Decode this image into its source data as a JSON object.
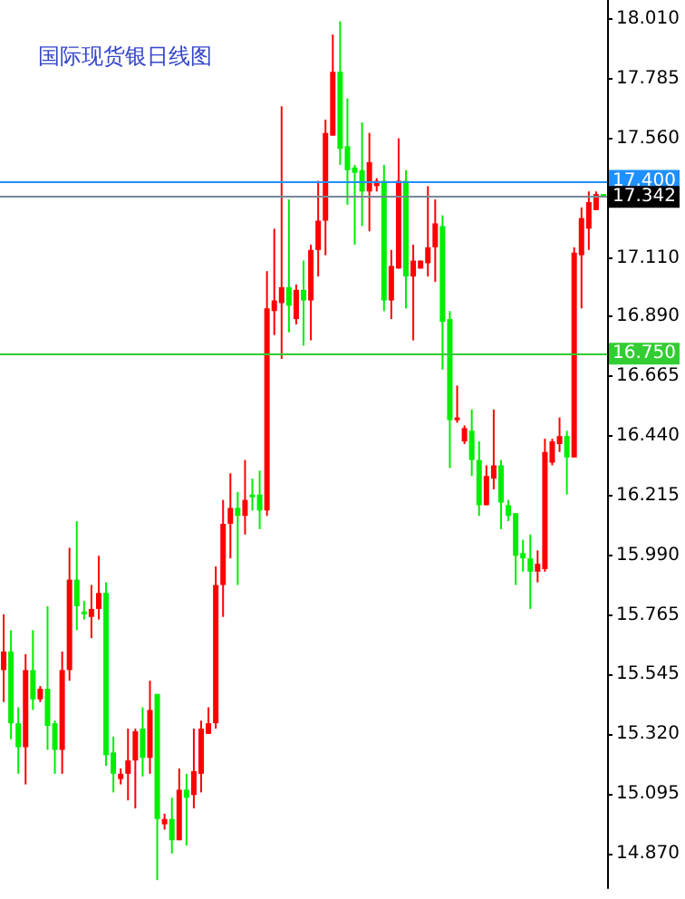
{
  "chart_data": {
    "type": "candlestick",
    "title": "国际现货银日线图",
    "categories": [
      null,
      null,
      null,
      null,
      null,
      null,
      null,
      null,
      null,
      null,
      null,
      null,
      null,
      null,
      null,
      null,
      null,
      null,
      null,
      null,
      null,
      null,
      null,
      null,
      null,
      null,
      null,
      null,
      null,
      null,
      null,
      null,
      null,
      null,
      null,
      null,
      null,
      null,
      null,
      null,
      null,
      null,
      null,
      null,
      null,
      null,
      null,
      null,
      null,
      null,
      null,
      null,
      null,
      null,
      null,
      null,
      null,
      null,
      null,
      null,
      null,
      null,
      null,
      null,
      null,
      null,
      null,
      null,
      null,
      null,
      null,
      null,
      null,
      null,
      null,
      null,
      null,
      null,
      null,
      null,
      null,
      null,
      null
    ],
    "ohlc": [
      [
        15.56,
        15.77,
        15.44,
        15.63
      ],
      [
        15.63,
        15.71,
        15.3,
        15.36
      ],
      [
        15.36,
        15.42,
        15.17,
        15.27
      ],
      [
        15.27,
        15.62,
        15.13,
        15.56
      ],
      [
        15.56,
        15.71,
        15.41,
        15.45
      ],
      [
        15.45,
        15.5,
        15.44,
        15.49
      ],
      [
        15.49,
        15.8,
        15.26,
        15.35
      ],
      [
        15.36,
        15.37,
        15.17,
        15.26
      ],
      [
        15.26,
        15.63,
        15.17,
        15.56
      ],
      [
        15.56,
        16.02,
        15.52,
        15.9
      ],
      [
        15.9,
        16.12,
        15.71,
        15.8
      ],
      [
        15.78,
        15.82,
        15.75,
        15.77
      ],
      [
        15.76,
        15.88,
        15.68,
        15.79
      ],
      [
        15.79,
        15.99,
        15.75,
        15.85
      ],
      [
        15.85,
        15.89,
        15.2,
        15.24
      ],
      [
        15.25,
        15.31,
        15.1,
        15.17
      ],
      [
        15.15,
        15.19,
        15.13,
        15.17
      ],
      [
        15.17,
        15.34,
        15.07,
        15.22
      ],
      [
        15.22,
        15.34,
        15.04,
        15.33
      ],
      [
        15.34,
        15.42,
        15.16,
        15.23
      ],
      [
        15.23,
        15.52,
        15.17,
        15.41
      ],
      [
        15.47,
        15.47,
        14.77,
        15.0
      ],
      [
        14.98,
        15.02,
        14.96,
        15.0
      ],
      [
        15.0,
        15.08,
        14.87,
        14.92
      ],
      [
        14.92,
        15.19,
        14.92,
        15.11
      ],
      [
        15.11,
        15.17,
        14.9,
        15.08
      ],
      [
        15.09,
        15.34,
        15.04,
        15.18
      ],
      [
        15.17,
        15.37,
        15.1,
        15.34
      ],
      [
        15.32,
        15.42,
        15.32,
        15.36
      ],
      [
        15.36,
        15.95,
        15.34,
        15.88
      ],
      [
        15.88,
        16.2,
        15.76,
        16.11
      ],
      [
        16.11,
        16.3,
        15.98,
        16.17
      ],
      [
        16.17,
        16.23,
        15.88,
        16.14
      ],
      [
        16.14,
        16.35,
        16.07,
        16.2
      ],
      [
        16.22,
        16.28,
        16.16,
        16.21
      ],
      [
        16.22,
        16.31,
        16.09,
        16.16
      ],
      [
        16.16,
        17.06,
        16.14,
        16.92
      ],
      [
        16.91,
        17.22,
        16.82,
        16.95
      ],
      [
        16.94,
        17.68,
        16.73,
        17.0
      ],
      [
        17.0,
        17.33,
        16.83,
        16.93
      ],
      [
        16.88,
        17.01,
        16.86,
        16.99
      ],
      [
        16.99,
        17.1,
        16.78,
        16.95
      ],
      [
        16.95,
        17.16,
        16.8,
        17.14
      ],
      [
        17.14,
        17.4,
        17.04,
        17.25
      ],
      [
        17.25,
        17.63,
        17.12,
        17.58
      ],
      [
        17.57,
        17.95,
        17.57,
        17.81
      ],
      [
        17.81,
        18.0,
        17.46,
        17.52
      ],
      [
        17.53,
        17.71,
        17.31,
        17.44
      ],
      [
        17.45,
        17.46,
        17.16,
        17.43
      ],
      [
        17.44,
        17.62,
        17.23,
        17.36
      ],
      [
        17.36,
        17.58,
        17.21,
        17.47
      ],
      [
        17.38,
        17.41,
        17.36,
        17.4
      ],
      [
        17.4,
        17.46,
        16.91,
        16.95
      ],
      [
        16.95,
        17.14,
        16.88,
        17.08
      ],
      [
        17.07,
        17.56,
        17.07,
        17.4
      ],
      [
        17.4,
        17.44,
        16.92,
        17.04
      ],
      [
        17.04,
        17.16,
        16.8,
        17.1
      ],
      [
        17.07,
        17.1,
        17.07,
        17.1
      ],
      [
        17.09,
        17.38,
        17.04,
        17.15
      ],
      [
        17.15,
        17.33,
        17.02,
        17.24
      ],
      [
        17.23,
        17.27,
        16.69,
        16.87
      ],
      [
        16.88,
        16.91,
        16.32,
        16.5
      ],
      [
        16.5,
        16.63,
        16.49,
        16.51
      ],
      [
        16.42,
        16.48,
        16.41,
        16.47
      ],
      [
        16.46,
        16.54,
        16.29,
        16.35
      ],
      [
        16.35,
        16.42,
        16.14,
        16.18
      ],
      [
        16.18,
        16.33,
        16.18,
        16.29
      ],
      [
        16.28,
        16.54,
        16.24,
        16.33
      ],
      [
        16.33,
        16.35,
        16.09,
        16.19
      ],
      [
        16.18,
        16.2,
        16.12,
        16.14
      ],
      [
        16.15,
        16.15,
        15.88,
        15.99
      ],
      [
        16.0,
        16.05,
        15.93,
        15.98
      ],
      [
        15.98,
        16.07,
        15.79,
        15.93
      ],
      [
        15.93,
        16.01,
        15.89,
        15.96
      ],
      [
        15.94,
        16.43,
        15.93,
        16.38
      ],
      [
        16.34,
        16.43,
        16.33,
        16.42
      ],
      [
        16.41,
        16.51,
        16.38,
        16.44
      ],
      [
        16.44,
        16.46,
        16.22,
        16.36
      ],
      [
        16.36,
        17.15,
        16.36,
        17.13
      ],
      [
        17.12,
        17.3,
        16.92,
        17.26
      ],
      [
        17.22,
        17.36,
        17.14,
        17.32
      ],
      [
        17.29,
        17.36,
        17.29,
        17.35
      ],
      [
        17.35,
        17.35,
        17.34,
        17.34
      ]
    ],
    "colors": [
      "#ff0000",
      "#00ee00",
      "#00ee00",
      "#ff0000",
      "#00ee00",
      "#ff0000",
      "#00ee00",
      "#00ee00",
      "#ff0000",
      "#ff0000",
      "#00ee00",
      "#00ee00",
      "#ff0000",
      "#ff0000",
      "#00ee00",
      "#00ee00",
      "#ff0000",
      "#ff0000",
      "#ff0000",
      "#00ee00",
      "#ff0000",
      "#00ee00",
      "#ff0000",
      "#00ee00",
      "#ff0000",
      "#00ee00",
      "#ff0000",
      "#ff0000",
      "#ff0000",
      "#ff0000",
      "#ff0000",
      "#ff0000",
      "#00ee00",
      "#ff0000",
      "#00ee00",
      "#00ee00",
      "#ff0000",
      "#ff0000",
      "#ff0000",
      "#00ee00",
      "#ff0000",
      "#00ee00",
      "#ff0000",
      "#ff0000",
      "#ff0000",
      "#ff0000",
      "#00ee00",
      "#00ee00",
      "#00ee00",
      "#00ee00",
      "#ff0000",
      "#ff0000",
      "#00ee00",
      "#ff0000",
      "#ff0000",
      "#00ee00",
      "#ff0000",
      "#ff0000",
      "#ff0000",
      "#ff0000",
      "#00ee00",
      "#00ee00",
      "#ff0000",
      "#ff0000",
      "#00ee00",
      "#00ee00",
      "#ff0000",
      "#ff0000",
      "#00ee00",
      "#00ee00",
      "#00ee00",
      "#00ee00",
      "#00ee00",
      "#ff0000",
      "#ff0000",
      "#ff0000",
      "#ff0000",
      "#00ee00",
      "#ff0000",
      "#ff0000",
      "#ff0000",
      "#ff0000",
      "#00ee00"
    ],
    "ylim": [
      14.74,
      18.08
    ],
    "yticks": [
      {
        "value": 18.01,
        "label": "18.010"
      },
      {
        "value": 17.785,
        "label": "17.785"
      },
      {
        "value": 17.56,
        "label": "17.560"
      },
      {
        "value": 17.335,
        "label": null
      },
      {
        "value": 17.11,
        "label": "17.110"
      },
      {
        "value": 16.89,
        "label": "16.890"
      },
      {
        "value": 16.665,
        "label": "16.665"
      },
      {
        "value": 16.44,
        "label": "16.440"
      },
      {
        "value": 16.215,
        "label": "16.215"
      },
      {
        "value": 15.99,
        "label": "15.990"
      },
      {
        "value": 15.765,
        "label": "15.765"
      },
      {
        "value": 15.545,
        "label": "15.545"
      },
      {
        "value": 15.32,
        "label": "15.320"
      },
      {
        "value": 15.095,
        "label": "15.095"
      },
      {
        "value": 14.87,
        "label": "14.870"
      }
    ],
    "ref_lines": [
      {
        "axis": "y",
        "value": 17.4,
        "label": "17.400",
        "color": "#1e90ff"
      },
      {
        "axis": "y",
        "value": 17.342,
        "label": "17.342",
        "color": "#778899"
      },
      {
        "axis": "y",
        "value": 16.75,
        "label": "16.750",
        "color": "#32cd32"
      }
    ],
    "tick_labels": "y",
    "grid": false
  }
}
